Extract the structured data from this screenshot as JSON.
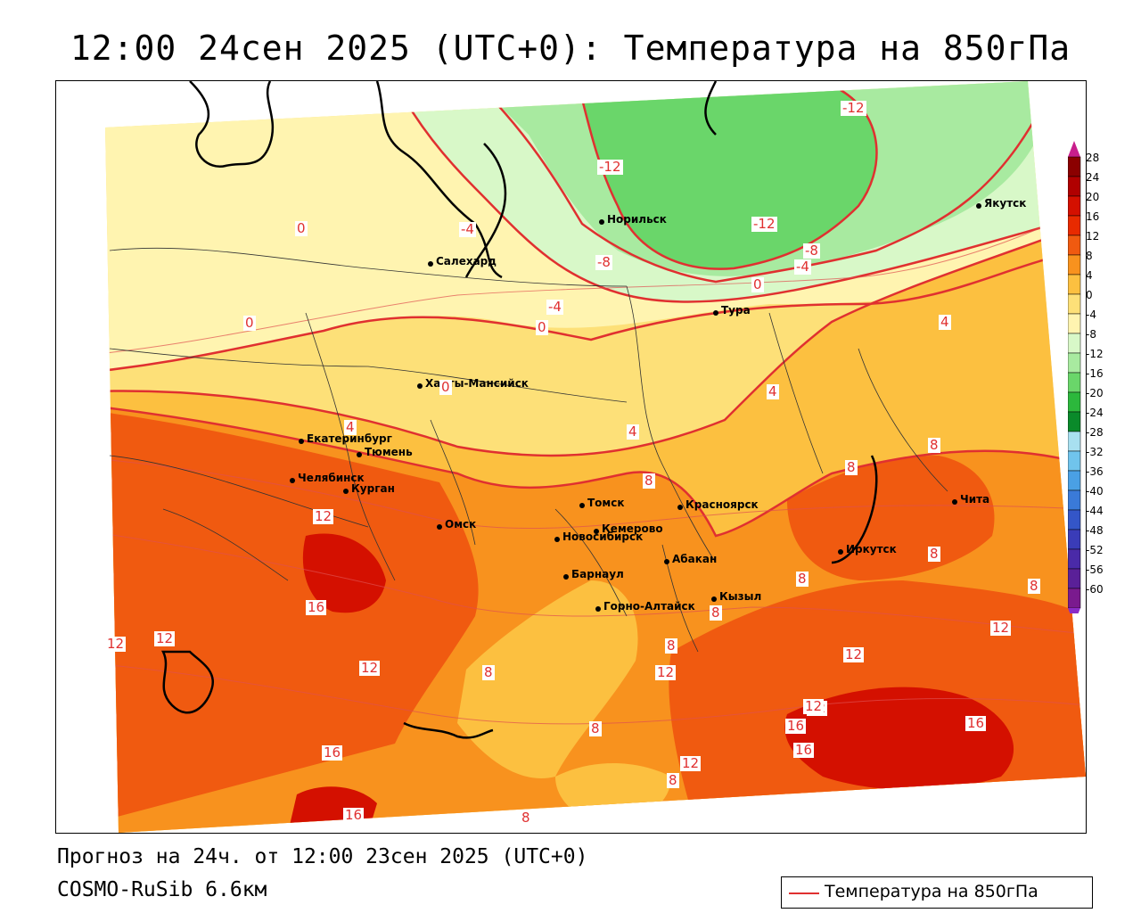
{
  "title": "12:00 24сен 2025 (UTC+0): Температура на 850гПа",
  "forecast_info": "Прогноз на 24ч. от 12:00 23сен 2025 (UTC+0)",
  "model_name": "COSMO-RuSib 6.6км",
  "legend": {
    "label": "Температура на 850гПа",
    "line_color": "#e03030"
  },
  "colorbar": {
    "levels": [
      "28",
      "24",
      "20",
      "16",
      "12",
      "8",
      "4",
      "0",
      "-4",
      "-8",
      "-12",
      "-16",
      "-20",
      "-24",
      "-28",
      "-32",
      "-36",
      "-40",
      "-44",
      "-48",
      "-52",
      "-56",
      "-60"
    ],
    "colors": [
      "#8b0000",
      "#b00000",
      "#d41000",
      "#e82a00",
      "#f05a10",
      "#f8921e",
      "#fcc040",
      "#fde078",
      "#fff4b0",
      "#d8f8c8",
      "#a8eaa0",
      "#6ad66a",
      "#2cb83c",
      "#0a8a2a",
      "#a8e0f0",
      "#70c4ec",
      "#4aa0e4",
      "#3a7ad8",
      "#3456c8",
      "#3a3cb8",
      "#4a2aa8",
      "#5a2098",
      "#7a1a8e"
    ],
    "top_arrow_color": "#c81e8c",
    "bottom_arrow_color": "#8a2cc8"
  },
  "cities": [
    {
      "name": "Якутск"
    },
    {
      "name": "Норильск"
    },
    {
      "name": "Салехард"
    },
    {
      "name": "Тура"
    },
    {
      "name": "Ханты-Мансийск"
    },
    {
      "name": "Екатеринбург"
    },
    {
      "name": "Тюмень"
    },
    {
      "name": "Челябинск"
    },
    {
      "name": "Курган"
    },
    {
      "name": "Омск"
    },
    {
      "name": "Томск"
    },
    {
      "name": "Красноярск"
    },
    {
      "name": "Новосибирск"
    },
    {
      "name": "Кемерово"
    },
    {
      "name": "Абакан"
    },
    {
      "name": "Барнаул"
    },
    {
      "name": "Горно-Алтайск"
    },
    {
      "name": "Кызыл"
    },
    {
      "name": "Иркутск"
    },
    {
      "name": "Чита"
    }
  ],
  "contour_labels": [
    {
      "value": "-12"
    },
    {
      "value": "-12"
    },
    {
      "value": "-12"
    },
    {
      "value": "-8"
    },
    {
      "value": "-8"
    },
    {
      "value": "-4"
    },
    {
      "value": "-4"
    },
    {
      "value": "-4"
    },
    {
      "value": "0"
    },
    {
      "value": "0"
    },
    {
      "value": "0"
    },
    {
      "value": "0"
    },
    {
      "value": "0"
    },
    {
      "value": "4"
    },
    {
      "value": "4"
    },
    {
      "value": "4"
    },
    {
      "value": "4"
    },
    {
      "value": "8"
    },
    {
      "value": "8"
    },
    {
      "value": "8"
    },
    {
      "value": "8"
    },
    {
      "value": "8"
    },
    {
      "value": "8"
    },
    {
      "value": "8"
    },
    {
      "value": "8"
    },
    {
      "value": "8"
    },
    {
      "value": "8"
    },
    {
      "value": "8"
    },
    {
      "value": "8"
    },
    {
      "value": "12"
    },
    {
      "value": "12"
    },
    {
      "value": "12"
    },
    {
      "value": "12"
    },
    {
      "value": "12"
    },
    {
      "value": "12"
    },
    {
      "value": "12"
    },
    {
      "value": "12"
    },
    {
      "value": "12"
    },
    {
      "value": "12"
    },
    {
      "value": "16"
    },
    {
      "value": "16"
    },
    {
      "value": "16"
    },
    {
      "value": "16"
    },
    {
      "value": "16"
    },
    {
      "value": "16"
    }
  ]
}
